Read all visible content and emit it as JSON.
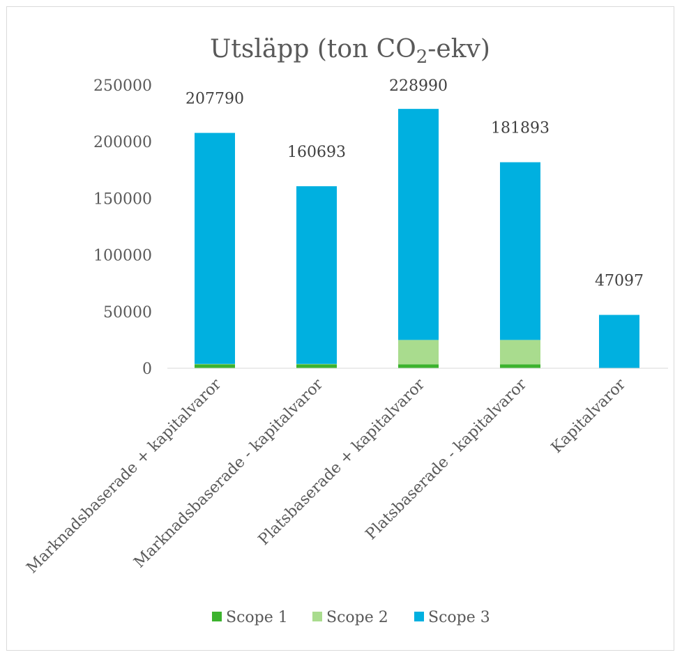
{
  "chart_data": {
    "type": "bar",
    "stacked": true,
    "title": {
      "prefix": "Utsläpp (ton CO",
      "subscript": "2",
      "suffix": "-ekv)"
    },
    "categories": [
      "Marknadsbaserade + kapitalvaror",
      "Marknadsbaserade - kapitalvaror",
      "Platsbaserade + kapitalvaror",
      "Platsbaserade - kapitalvaror",
      "Kapitalvaror"
    ],
    "series": [
      {
        "name": "Scope 1",
        "color": "#3cb32e",
        "values": [
          3500,
          3500,
          3500,
          3500,
          0
        ]
      },
      {
        "name": "Scope 2",
        "color": "#a9dc8e",
        "values": [
          300,
          300,
          21500,
          21500,
          0
        ]
      },
      {
        "name": "Scope 3",
        "color": "#00b0e0",
        "values": [
          203990,
          156893,
          203990,
          156893,
          47097
        ]
      }
    ],
    "totals": [
      "207790",
      "160693",
      "228990",
      "181893",
      "47097"
    ],
    "yticks": [
      "0",
      "50000",
      "100000",
      "150000",
      "200000",
      "250000"
    ],
    "ylim": [
      0,
      250000
    ],
    "grid": false,
    "legend_position": "bottom"
  }
}
